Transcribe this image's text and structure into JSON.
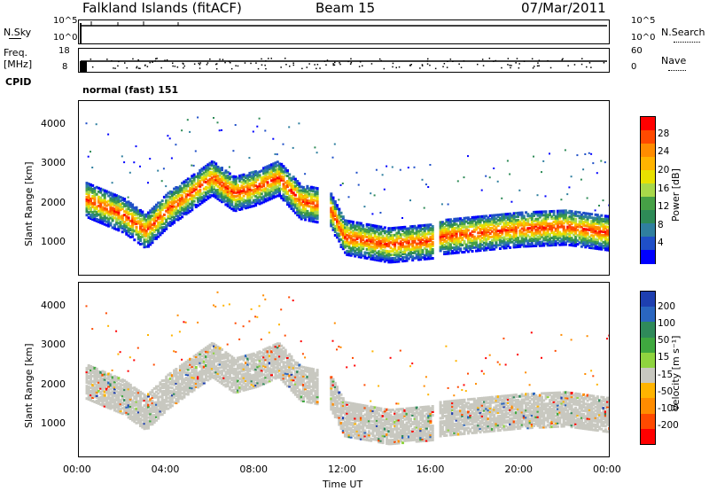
{
  "header": {
    "station": "Falkland Islands (fitACF)",
    "beam": "Beam 15",
    "date": "07/Mar/2011"
  },
  "top_panels": {
    "nsky_label": "N.Sky",
    "nsky_ticks": [
      "10^5",
      "10^0"
    ],
    "nsearch_label": "N.Search",
    "nsearch_ticks": [
      "10^5",
      "10^0"
    ],
    "freq_label_1": "Freq.",
    "freq_label_2": "[MHz]",
    "freq_ticks": [
      "18",
      "8"
    ],
    "nave_label": "Nave",
    "nave_ticks": [
      "60",
      "0"
    ],
    "cpid_label": "CPID",
    "cpid_text": "normal (fast) 151"
  },
  "chart_data": [
    {
      "type": "heatmap",
      "name": "power",
      "ylabel": "Slant Range [km]",
      "xlabel": "Time UT",
      "x_ticks": [
        "00:00",
        "04:00",
        "08:00",
        "12:00",
        "16:00",
        "20:00",
        "00:00"
      ],
      "x_range_hours": [
        0,
        24
      ],
      "y_ticks": [
        1000,
        2000,
        3000,
        4000
      ],
      "y_range_km": [
        200,
        4600
      ],
      "colorbar_label": "Power [dB]",
      "colorbar_ticks": [
        "28",
        "24",
        "20",
        "16",
        "12",
        "8",
        "4"
      ],
      "colorbar_colors": [
        "#ff0000",
        "#ff4a00",
        "#ff8c00",
        "#ffb400",
        "#e8e000",
        "#a8d84a",
        "#46a046",
        "#2e8b57",
        "#2f7f9f",
        "#1f4fc8",
        "#0000ff"
      ],
      "data_gaps_hours": [
        [
          10.8,
          11.3
        ],
        [
          16.0,
          16.3
        ]
      ],
      "bands": [
        {
          "name": "main-echo",
          "start": 0.3,
          "end": 24,
          "path": [
            [
              0.3,
              2150
            ],
            [
              2,
              1750
            ],
            [
              3,
              1350
            ],
            [
              4,
              1900
            ],
            [
              5,
              2300
            ],
            [
              6,
              2700
            ],
            [
              7,
              2300
            ],
            [
              8,
              2450
            ],
            [
              9,
              2700
            ],
            [
              10,
              2100
            ],
            [
              11.3,
              1950
            ],
            [
              12,
              1200
            ],
            [
              14,
              1000
            ],
            [
              16,
              1100
            ],
            [
              16.3,
              1200
            ],
            [
              20,
              1400
            ],
            [
              22,
              1450
            ],
            [
              24,
              1300
            ]
          ],
          "width_km": 450
        }
      ]
    },
    {
      "type": "heatmap",
      "name": "velocity",
      "ylabel": "Slant Range [km]",
      "xlabel": "Time UT",
      "x_ticks": [
        "00:00",
        "04:00",
        "08:00",
        "12:00",
        "16:00",
        "20:00",
        "00:00"
      ],
      "x_range_hours": [
        0,
        24
      ],
      "y_ticks": [
        1000,
        2000,
        3000,
        4000
      ],
      "y_range_km": [
        200,
        4600
      ],
      "colorbar_label": "Velocity [m s⁻¹]",
      "colorbar_ticks": [
        "200",
        "100",
        "50",
        "15",
        "-15",
        "-50",
        "-100",
        "-200"
      ],
      "colorbar_colors": [
        "#1e3fb0",
        "#2a66c0",
        "#2f8a5a",
        "#3fa83f",
        "#8fd43f",
        "#c8c8c0",
        "#ffb400",
        "#ff8c00",
        "#ff4a00",
        "#ff0000"
      ],
      "ground_scatter_color": "#c8c8c0"
    }
  ],
  "colors": {
    "ground_scatter": "#c8c8c0"
  }
}
